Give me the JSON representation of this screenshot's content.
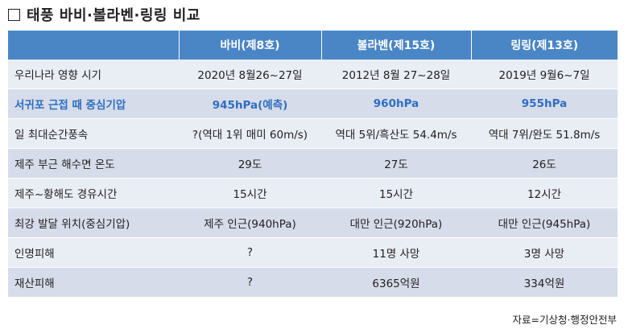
{
  "title": {
    "text": "태풍 바비·볼라벤·링링 비교"
  },
  "table": {
    "headers": [
      "",
      "바비(제8호)",
      "볼라벤(제15호)",
      "링링(제13호)"
    ],
    "rows": [
      {
        "label": "우리나라 영향 시기",
        "values": [
          "2020년 8월26~27일",
          "2012년 8월 27~28일",
          "2019년 9월6~7일"
        ]
      },
      {
        "label": "서귀포 근접 때 중심기압",
        "values": [
          "945hPa(예측)",
          "960hPa",
          "955hPa"
        ],
        "highlight": true
      },
      {
        "label": "일 최대순간풍속",
        "values": [
          "?(역대 1위 매미 60m/s)",
          "역대 5위/흑산도 54.4m/s",
          "역대 7위/완도 51.8m/s"
        ]
      },
      {
        "label": "제주 부근 해수면 온도",
        "values": [
          "29도",
          "27도",
          "26도"
        ]
      },
      {
        "label": "제주~황해도 경유시간",
        "values": [
          "15시간",
          "15시간",
          "12시간"
        ]
      },
      {
        "label": "최강 발달 위치(중심기압)",
        "values": [
          "제주 인근(940hPa)",
          "대만 인근(920hPa)",
          "대만 인근(945hPa)"
        ]
      },
      {
        "label": "인명피해",
        "values": [
          "?",
          "11명 사망",
          "3명 사망"
        ]
      },
      {
        "label": "재산피해",
        "values": [
          "?",
          "6365억원",
          "334억원"
        ]
      }
    ]
  },
  "source": "자료=기상청·행정안전부",
  "colors": {
    "header_bg": "#4a86c5",
    "row_light": "#e9edf4",
    "row_dark": "#d6dcea",
    "highlight_text": "#2e6fc0"
  }
}
